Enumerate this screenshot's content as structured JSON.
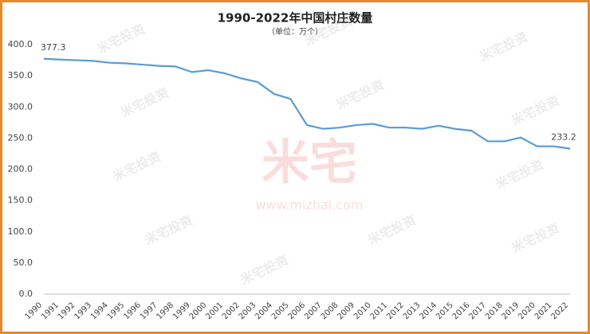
{
  "chart_data": {
    "type": "line",
    "title": "1990-2022年中国村庄数量",
    "subtitle": "（单位：万个）",
    "watermark": [
      "米宅",
      "www.mizhai.com",
      "米宅投资"
    ],
    "categories": [
      "1990",
      "1991",
      "1992",
      "1993",
      "1994",
      "1995",
      "1996",
      "1997",
      "1998",
      "1999",
      "2000",
      "2001",
      "2002",
      "2003",
      "2004",
      "2005",
      "2006",
      "2007",
      "2008",
      "2009",
      "2010",
      "2011",
      "2012",
      "2013",
      "2014",
      "2015",
      "2016",
      "2017",
      "2018",
      "2019",
      "2020",
      "2021",
      "2022"
    ],
    "values": [
      377.3,
      376,
      375,
      374,
      371,
      370,
      368,
      366,
      365,
      356,
      359,
      354,
      346,
      340,
      321,
      313,
      271,
      265,
      267,
      271,
      273,
      267,
      267,
      265,
      270,
      265,
      262,
      245,
      245,
      251,
      237,
      237,
      233.2
    ],
    "value_labels": [
      "377.3",
      null,
      null,
      null,
      null,
      null,
      null,
      null,
      null,
      null,
      null,
      null,
      null,
      null,
      null,
      null,
      null,
      null,
      null,
      null,
      null,
      null,
      null,
      null,
      null,
      null,
      null,
      null,
      null,
      null,
      null,
      null,
      "233.2"
    ],
    "color": "#5b9bd5",
    "ylim": [
      0,
      400
    ],
    "yticks": [
      {
        "value": 0,
        "label": "0.0"
      },
      {
        "value": 50,
        "label": "50.0"
      },
      {
        "value": 100,
        "label": "100.0"
      },
      {
        "value": 150,
        "label": "150.0"
      },
      {
        "value": 200,
        "label": "200.0"
      },
      {
        "value": 250,
        "label": "250.0"
      },
      {
        "value": 300,
        "label": "300.0"
      },
      {
        "value": 350,
        "label": "350.0"
      },
      {
        "value": 400,
        "label": "400.0"
      }
    ],
    "grid": false
  }
}
